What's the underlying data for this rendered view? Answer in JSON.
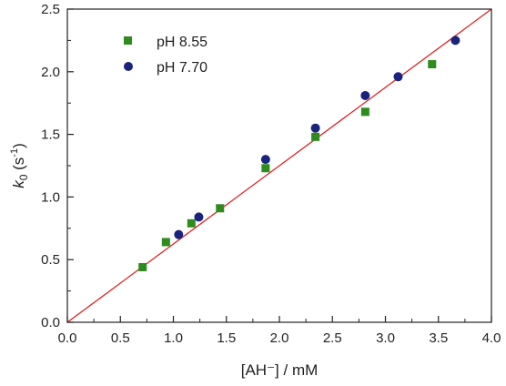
{
  "chart_data": {
    "type": "scatter",
    "xlabel": "[AH⁻] / mM",
    "ylabel_main": "k",
    "ylabel_sub": "0",
    "ylabel_unit": " (s",
    "ylabel_exp": "-1",
    "ylabel_close": ")",
    "xlim": [
      0.0,
      4.0
    ],
    "ylim": [
      0.0,
      2.5
    ],
    "xticks": [
      "0.0",
      "0.5",
      "1.0",
      "1.5",
      "2.0",
      "2.5",
      "3.0",
      "3.5",
      "4.0"
    ],
    "yticks": [
      "0.0",
      "0.5",
      "1.0",
      "1.5",
      "2.0",
      "2.5"
    ],
    "grid": false,
    "legend_position": "top-left",
    "series": [
      {
        "name": "pH 8.55",
        "marker": "square",
        "color": "#2e8b1e",
        "x": [
          0.71,
          0.93,
          1.17,
          1.44,
          1.87,
          2.34,
          2.81,
          3.44
        ],
        "y": [
          0.44,
          0.64,
          0.79,
          0.91,
          1.23,
          1.48,
          1.68,
          2.06
        ]
      },
      {
        "name": "pH 7.70",
        "marker": "circle",
        "color": "#1a237e",
        "x": [
          1.05,
          1.24,
          1.87,
          2.34,
          2.81,
          3.12,
          3.66
        ],
        "y": [
          0.7,
          0.84,
          1.3,
          1.55,
          1.81,
          1.96,
          2.25
        ]
      }
    ],
    "fit_line": {
      "color": "#e02020",
      "x": [
        0.0,
        4.0
      ],
      "y": [
        0.0,
        2.5
      ]
    }
  }
}
